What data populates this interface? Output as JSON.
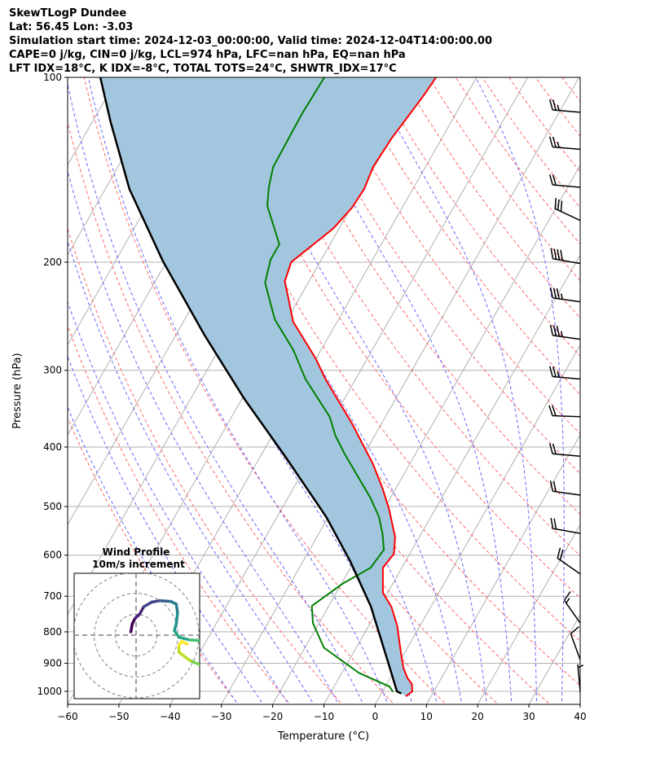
{
  "header": {
    "title": "SkewTLogP Dundee",
    "location": "Lat: 56.45   Lon: -3.03",
    "times": "Simulation start time: 2024-12-03_00:00:00, Valid time: 2024-12-04T14:00:00.00",
    "indices1": "CAPE=0 j/kg, CIN=0 j/kg, LCL=974 hPa, LFC=nan hPa, EQ=nan hPa",
    "indices2": "LFT IDX=18°C, K IDX=-8°C, TOTAL TOTS=24°C, SHWTR_IDX=17°C"
  },
  "chart_data": {
    "type": "line",
    "subtype": "skew-t log-p",
    "xlabel": "Temperature (°C)",
    "ylabel": "Pressure (hPa)",
    "xlim": [
      -60,
      40
    ],
    "ylim": [
      1053,
      100
    ],
    "xticks": [
      "−60",
      "−50",
      "−40",
      "−30",
      "−20",
      "−10",
      "0",
      "10",
      "20",
      "30",
      "40"
    ],
    "xtick_values": [
      -60,
      -50,
      -40,
      -30,
      -20,
      -10,
      0,
      10,
      20,
      30,
      40
    ],
    "yticks": [
      "100",
      "200",
      "300",
      "400",
      "500",
      "600",
      "700",
      "800",
      "900",
      "1000"
    ],
    "ytick_values": [
      100,
      200,
      300,
      400,
      500,
      600,
      700,
      800,
      900,
      1000
    ],
    "grid": true,
    "colors": {
      "temperature": "#ff0000",
      "dewpoint": "#008000",
      "parcel": "#000000",
      "shade": "#a3c6df",
      "isotherm": "#b0b0b0",
      "dry_adiabat": "#ff6666",
      "moist_adiabat": "#6666ff"
    },
    "series": [
      {
        "name": "temperature",
        "pressure": [
          1019,
          1000,
          973,
          952,
          915,
          861,
          781,
          728,
          691,
          629,
          597,
          561,
          505,
          468,
          427,
          366,
          310,
          287,
          250,
          232,
          215,
          200,
          176,
          163,
          152,
          140,
          126,
          107,
          100
        ],
        "temp": [
          5.1,
          5.8,
          4.9,
          3.4,
          1.4,
          -0.9,
          -4.5,
          -7.7,
          -10.9,
          -13.7,
          -13.1,
          -14.7,
          -19.0,
          -22.5,
          -27.1,
          -35.8,
          -45.9,
          -50.1,
          -58.6,
          -61.6,
          -64.7,
          -65.6,
          -61.1,
          -59.8,
          -59.5,
          -60.2,
          -59.8,
          -58.3,
          -57.9
        ]
      },
      {
        "name": "dewpoint",
        "pressure": [
          1002,
          982,
          933,
          849,
          774,
          726,
          668,
          629,
          588,
          553,
          520,
          485,
          447,
          410,
          383,
          357,
          310,
          278,
          248,
          216,
          198,
          187,
          162,
          151,
          140,
          115,
          100
        ],
        "temp": [
          2.1,
          0.8,
          -6.7,
          -16.3,
          -21.2,
          -23.3,
          -19.8,
          -16.1,
          -15.5,
          -17.6,
          -20.1,
          -23.8,
          -28.7,
          -33.9,
          -37.7,
          -40.9,
          -49.8,
          -55.4,
          -62.4,
          -68.4,
          -69.9,
          -69.9,
          -76.5,
          -78.3,
          -79.7,
          -80.0,
          -79.7
        ]
      },
      {
        "name": "parcel",
        "pressure": [
          1008,
          1000,
          888,
          728,
          615,
          520,
          414,
          334,
          262,
          199,
          152,
          118,
          100
        ],
        "temp": [
          3.9,
          2.8,
          -2.6,
          -11.7,
          -20.7,
          -30.4,
          -45.2,
          -59.5,
          -74.6,
          -90.8,
          -105.3,
          -116.5,
          -123.4
        ]
      }
    ],
    "wind_barbs": [
      {
        "p": 114,
        "speed_kt": 25,
        "dir": 275
      },
      {
        "p": 131,
        "speed_kt": 25,
        "dir": 275
      },
      {
        "p": 151,
        "speed_kt": 20,
        "dir": 275
      },
      {
        "p": 171,
        "speed_kt": 30,
        "dir": 295
      },
      {
        "p": 201,
        "speed_kt": 40,
        "dir": 280
      },
      {
        "p": 232,
        "speed_kt": 35,
        "dir": 278
      },
      {
        "p": 267,
        "speed_kt": 35,
        "dir": 278
      },
      {
        "p": 310,
        "speed_kt": 25,
        "dir": 275
      },
      {
        "p": 357,
        "speed_kt": 20,
        "dir": 272
      },
      {
        "p": 414,
        "speed_kt": 20,
        "dir": 275
      },
      {
        "p": 479,
        "speed_kt": 20,
        "dir": 278
      },
      {
        "p": 553,
        "speed_kt": 20,
        "dir": 280
      },
      {
        "p": 644,
        "speed_kt": 20,
        "dir": 305
      },
      {
        "p": 774,
        "speed_kt": 15,
        "dir": 325
      },
      {
        "p": 888,
        "speed_kt": 10,
        "dir": 340
      },
      {
        "p": 1002,
        "speed_kt": 5,
        "dir": 355
      }
    ],
    "hodograph": {
      "title": "Wind Profile",
      "subtitle": "10m/s increment",
      "rings_ms": [
        10,
        20,
        30
      ],
      "u": [
        -2.5,
        -1.8,
        -0.5,
        1.7,
        3.6,
        7.5,
        11.4,
        16.6,
        19.2,
        19.8,
        19.2,
        18.3,
        20.5,
        25.7,
        30.2,
        30.2,
        25.7,
        20.5,
        20.5,
        21.8,
        24.4
      ],
      "v": [
        1.6,
        5.4,
        8.0,
        10.0,
        13.5,
        15.8,
        16.5,
        16.1,
        14.8,
        10.6,
        5.4,
        2.2,
        -1.0,
        -2.3,
        -2.6,
        -14.0,
        -12.1,
        -8.2,
        -4.9,
        -3.0,
        -4.3
      ]
    }
  }
}
